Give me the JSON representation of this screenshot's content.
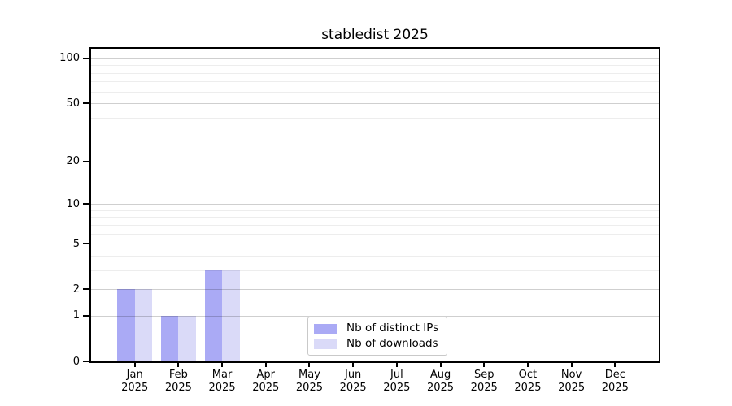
{
  "figure": {
    "title": "stabledist 2025"
  },
  "colors": {
    "distinct_ips_bar": "#aaaaf5",
    "downloads_bar": "#dadaf8",
    "axis_spine": "#000000",
    "grid_major": "#cecece",
    "grid_minor": "#ededed",
    "legend_border": "#c9c9c9",
    "background": "#ffffff"
  },
  "chart_data": {
    "type": "bar",
    "title": "stabledist 2025",
    "categories": [
      "Jan",
      "Feb",
      "Mar",
      "Apr",
      "May",
      "Jun",
      "Jul",
      "Aug",
      "Sep",
      "Oct",
      "Nov",
      "Dec"
    ],
    "category_year_label": "2025",
    "series": [
      {
        "name": "Nb of distinct IPs",
        "color": "#aaaaf5",
        "values": [
          2,
          1,
          3,
          0,
          0,
          0,
          0,
          0,
          0,
          0,
          0,
          0
        ]
      },
      {
        "name": "Nb of downloads",
        "color": "#dadaf8",
        "values": [
          2,
          1,
          3,
          0,
          0,
          0,
          0,
          0,
          0,
          0,
          0,
          0
        ]
      }
    ],
    "xlabel": "",
    "ylabel": "",
    "yscale": "log1p",
    "major_yticks": [
      0,
      1,
      2,
      5,
      10,
      20,
      50,
      100
    ],
    "minor_yticks": [
      3,
      4,
      6,
      7,
      8,
      9,
      30,
      40,
      60,
      70,
      80,
      90
    ],
    "ylim": [
      0,
      116
    ],
    "grid": "horizontal",
    "legend_position": "lower-center-inside"
  }
}
